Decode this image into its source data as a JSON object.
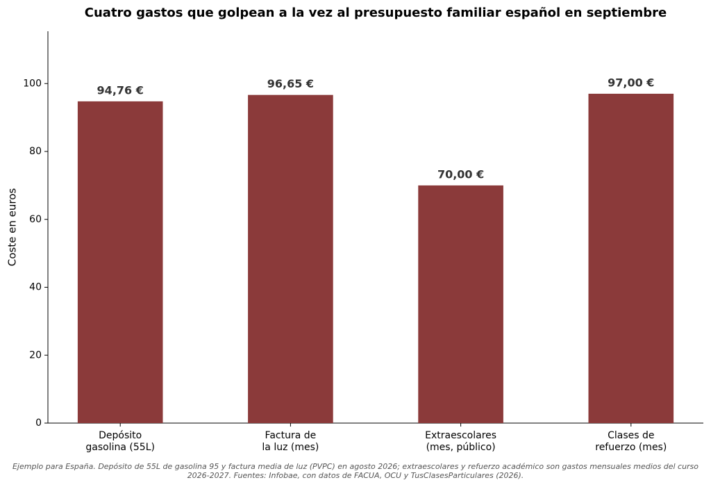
{
  "chart_data": {
    "type": "bar",
    "title": "Cuatro gastos que golpean a la vez al presupuesto familiar español en septiembre",
    "y_label": "Coste en euros",
    "categories": [
      "Depósito\ngasolina (55L)",
      "Factura de\nla luz (mes)",
      "Extraescolares\n(mes, público)",
      "Clases de\nrefuerzo (mes)"
    ],
    "values": [
      94.76,
      96.65,
      70.0,
      97.0
    ],
    "value_labels": [
      "94,76 €",
      "96,65 €",
      "70,00 €",
      "97,00 €"
    ],
    "color": "#8b3a3a",
    "ylim": [
      0,
      115.4
    ],
    "yticks": [
      0,
      20,
      40,
      60,
      80,
      100
    ],
    "grid": false,
    "note": "Ejemplo para España. Depósito de 55L de gasolina 95 y factura media de luz (PVPC) en agosto 2026; extraescolares y refuerzo académico son gastos mensuales medios del curso 2026-2027. Fuentes: Infobae, con datos de FACUA, OCU y TusClasesParticulares (2026)."
  }
}
